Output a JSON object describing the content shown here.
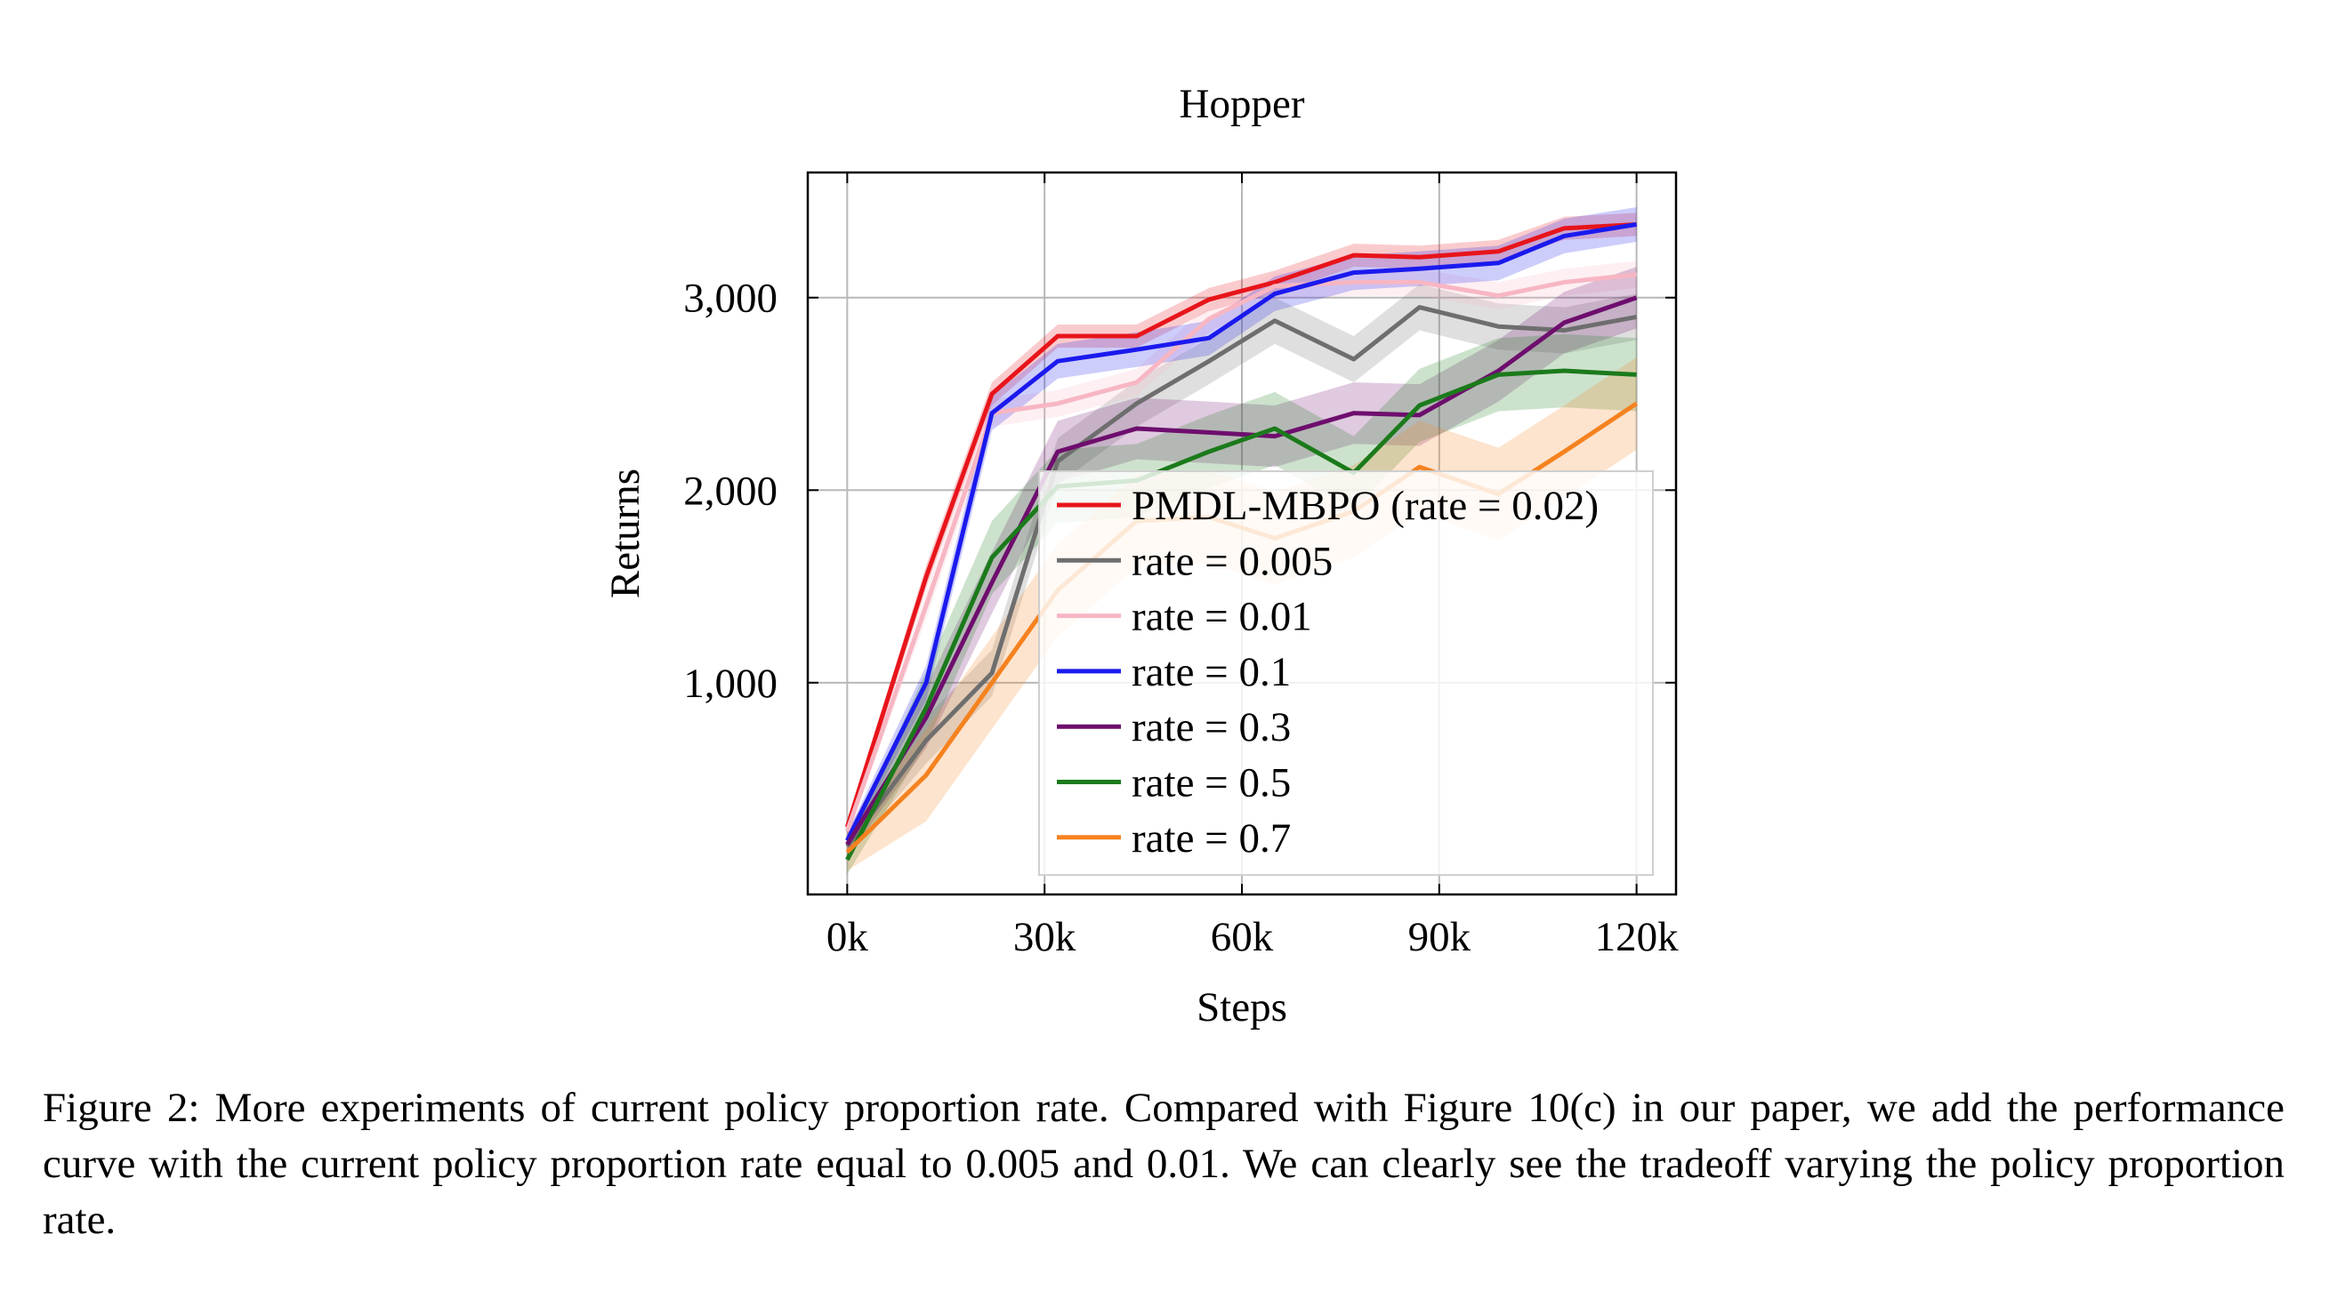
{
  "caption": "Figure 2: More experiments of current policy proportion rate. Compared with Figure 10(c) in our paper, we add the performance curve with the current policy proportion rate equal to 0.005 and 0.01. We can clearly see the tradeoff varying the policy proportion rate.",
  "chart_data": {
    "type": "line",
    "title": "Hopper",
    "xlabel": "Steps",
    "ylabel": "Returns",
    "xlim": [
      -6000,
      126000
    ],
    "ylim": [
      -100,
      3650
    ],
    "xticks": [
      0,
      30000,
      60000,
      90000,
      120000
    ],
    "xtick_labels": [
      "0k",
      "30k",
      "60k",
      "90k",
      "120k"
    ],
    "yticks": [
      1000,
      2000,
      3000
    ],
    "ytick_labels": [
      "1,000",
      "2,000",
      "3,000"
    ],
    "grid": true,
    "legend_position": "bottom-right",
    "x": [
      0,
      12000,
      22000,
      32000,
      44000,
      55000,
      65000,
      77000,
      87000,
      99000,
      109000,
      120000
    ],
    "series": [
      {
        "name": "PMDL-MBPO (rate = 0.02)",
        "color": "#e8141b",
        "values": [
          250,
          1550,
          2500,
          2800,
          2800,
          2990,
          3080,
          3220,
          3210,
          3240,
          3360,
          3380
        ],
        "band": 60
      },
      {
        "name": "rate = 0.005",
        "color": "#6e6e6e",
        "values": [
          150,
          700,
          1050,
          2150,
          2450,
          2670,
          2880,
          2680,
          2950,
          2850,
          2830,
          2900
        ],
        "band": 120
      },
      {
        "name": "rate = 0.01",
        "color": "#f7b6c3",
        "values": [
          230,
          1400,
          2400,
          2450,
          2560,
          2890,
          3060,
          3080,
          3080,
          3010,
          3080,
          3120
        ],
        "band": 70
      },
      {
        "name": "rate = 0.1",
        "color": "#1a1aee",
        "values": [
          180,
          1000,
          2400,
          2670,
          2730,
          2790,
          3020,
          3130,
          3150,
          3180,
          3320,
          3380
        ],
        "band": 90
      },
      {
        "name": "rate = 0.3",
        "color": "#6e0e6e",
        "values": [
          160,
          820,
          1520,
          2200,
          2320,
          2300,
          2280,
          2400,
          2390,
          2620,
          2870,
          3000
        ],
        "band": 160
      },
      {
        "name": "rate = 0.5",
        "color": "#1b7a1b",
        "values": [
          80,
          870,
          1650,
          2020,
          2050,
          2200,
          2320,
          2090,
          2440,
          2600,
          2620,
          2600
        ],
        "band": 190
      },
      {
        "name": "rate = 0.7",
        "color": "#f5821f",
        "values": [
          120,
          520,
          1000,
          1480,
          1840,
          1860,
          1750,
          1890,
          2120,
          1980,
          2200,
          2450
        ],
        "band": 240
      }
    ]
  }
}
